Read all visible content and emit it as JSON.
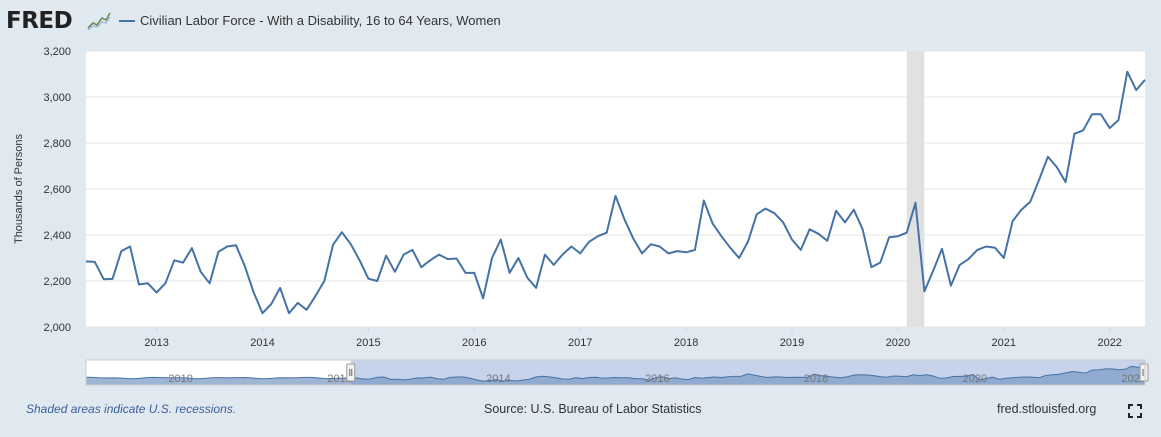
{
  "header": {
    "logo_text": "FRED",
    "series_title": "Civilian Labor Force - With a Disability, 16 to 64 Years, Women",
    "series_color": "#4572a7"
  },
  "footer": {
    "recession_note": "Shaded areas indicate U.S. recessions.",
    "source": "Source: U.S. Bureau of Labor Statistics",
    "site": "fred.stlouisfed.org",
    "fullscreen_icon": "expand-icon"
  },
  "navigator": {
    "labels": [
      "2010",
      "2012",
      "2014",
      "2016",
      "2018",
      "2020",
      "2022"
    ]
  },
  "chart_data": {
    "type": "line",
    "title": "",
    "ylabel": "Thousands of Persons",
    "ylim": [
      2000,
      3200
    ],
    "yticks": [
      2000,
      2200,
      2400,
      2600,
      2800,
      3000,
      3200
    ],
    "ytick_labels": [
      "2,000",
      "2,200",
      "2,400",
      "2,600",
      "2,800",
      "3,000",
      "3,200"
    ],
    "xlim": [
      "2012-05",
      "2022-05"
    ],
    "xticks": [
      "2013",
      "2014",
      "2015",
      "2016",
      "2017",
      "2018",
      "2019",
      "2020",
      "2021",
      "2022"
    ],
    "grid": true,
    "recession": {
      "start": "2020-02",
      "end": "2020-04",
      "color": "#e1e1e1"
    },
    "series": [
      {
        "name": "Civilian Labor Force - With a Disability, 16 to 64 Years, Women",
        "color": "#4572a7",
        "start": "2012-05",
        "frequency": "monthly",
        "values": [
          2285,
          2283,
          2208,
          2209,
          2330,
          2350,
          2185,
          2190,
          2150,
          2190,
          2290,
          2280,
          2343,
          2240,
          2190,
          2327,
          2350,
          2355,
          2265,
          2150,
          2060,
          2100,
          2170,
          2060,
          2105,
          2075,
          2135,
          2200,
          2358,
          2412,
          2360,
          2290,
          2210,
          2200,
          2310,
          2240,
          2315,
          2335,
          2260,
          2290,
          2315,
          2295,
          2298,
          2235,
          2235,
          2125,
          2300,
          2380,
          2235,
          2300,
          2215,
          2170,
          2315,
          2270,
          2315,
          2350,
          2320,
          2370,
          2395,
          2410,
          2570,
          2470,
          2385,
          2320,
          2360,
          2350,
          2320,
          2330,
          2325,
          2335,
          2550,
          2450,
          2395,
          2345,
          2300,
          2370,
          2490,
          2515,
          2495,
          2455,
          2380,
          2335,
          2425,
          2405,
          2375,
          2505,
          2455,
          2510,
          2425,
          2260,
          2280,
          2390,
          2395,
          2410,
          2540,
          2155,
          2245,
          2340,
          2180,
          2270,
          2295,
          2335,
          2350,
          2345,
          2300,
          2460,
          2510,
          2545,
          2640,
          2740,
          2695,
          2630,
          2840,
          2855,
          2925,
          2925,
          2865,
          2900,
          3110,
          3030,
          3075
        ]
      }
    ]
  }
}
